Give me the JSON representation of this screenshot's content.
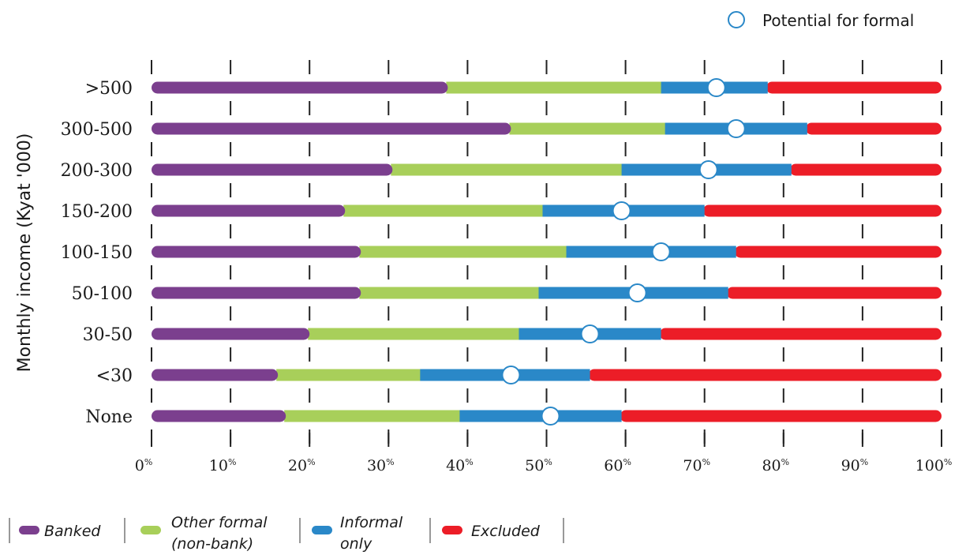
{
  "chart_data": {
    "type": "bar",
    "orientation": "horizontal",
    "stacked": true,
    "ylabel": "Monthly income (Kyat '000)",
    "xlabel": "",
    "xlim": [
      0,
      100
    ],
    "x_ticks": [
      "0%",
      "10%",
      "20%",
      "30%",
      "40%",
      "50%",
      "60%",
      "70%",
      "80%",
      "90%",
      "100%"
    ],
    "categories": [
      ">500",
      "300-500",
      "200-300",
      "150-200",
      "100-150",
      "50-100",
      "30-50",
      "<30",
      "None"
    ],
    "series": [
      {
        "name": "Banked",
        "color": "#7b3f8e",
        "values": [
          37.5,
          45.5,
          30.5,
          24.5,
          26.5,
          26.5,
          20,
          16,
          17
        ]
      },
      {
        "name": "Other formal (non-bank)",
        "color": "#a8cf5a",
        "values": [
          27,
          19.5,
          29,
          25,
          26,
          22.5,
          26.5,
          18,
          22
        ]
      },
      {
        "name": "Informal only",
        "color": "#2a88c8",
        "values": [
          13.5,
          18,
          21.5,
          20.5,
          21.5,
          24,
          18,
          21.5,
          20.5
        ]
      },
      {
        "name": "Excluded",
        "color": "#ec1d27",
        "values": [
          22,
          17,
          19,
          30,
          26,
          27,
          35.5,
          44.5,
          40.5
        ]
      }
    ],
    "markers": {
      "name": "Potential for formal",
      "values": [
        71.5,
        74,
        70.5,
        59.5,
        64.5,
        61.5,
        55.5,
        45.5,
        50.5
      ]
    },
    "legend": {
      "items": [
        {
          "label_line1": "Banked",
          "label_line2": ""
        },
        {
          "label_line1": "Other formal",
          "label_line2": "(non-bank)"
        },
        {
          "label_line1": "Informal",
          "label_line2": "only"
        },
        {
          "label_line1": "Excluded",
          "label_line2": ""
        }
      ],
      "marker_label": "Potential for formal"
    },
    "grid": false
  }
}
